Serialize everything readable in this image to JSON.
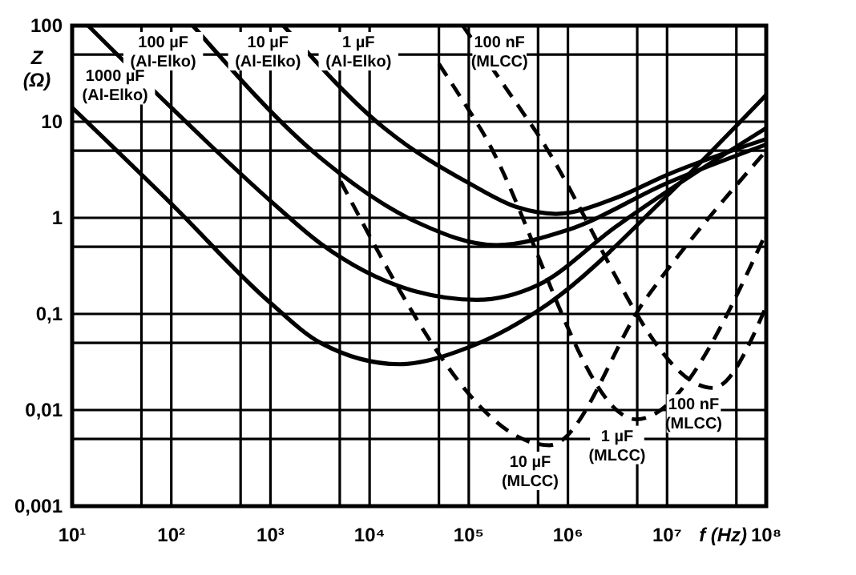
{
  "chart_data": {
    "type": "line",
    "xlabel": "f (Hz)",
    "ylabel": "Z (Ω)",
    "log": "xy",
    "grid": true,
    "marker": "none",
    "xlim": [
      10,
      100000000
    ],
    "ylim": [
      0.001,
      100
    ],
    "xticks": [
      {
        "value": 10,
        "label": "10¹"
      },
      {
        "value": 50,
        "label": null
      },
      {
        "value": 100,
        "label": "10²"
      },
      {
        "value": 500,
        "label": null
      },
      {
        "value": 1000,
        "label": "10³"
      },
      {
        "value": 5000,
        "label": null
      },
      {
        "value": 10000,
        "label": "10⁴"
      },
      {
        "value": 50000,
        "label": null
      },
      {
        "value": 100000,
        "label": "10⁵"
      },
      {
        "value": 500000,
        "label": null
      },
      {
        "value": 1000000,
        "label": "10⁶"
      },
      {
        "value": 5000000,
        "label": null
      },
      {
        "value": 10000000,
        "label": "10⁷"
      },
      {
        "value": 50000000,
        "label": null
      },
      {
        "value": 100000000,
        "label": "10⁸"
      }
    ],
    "yticks": [
      {
        "value": 0.001,
        "label": "0,001"
      },
      {
        "value": 0.005,
        "label": null
      },
      {
        "value": 0.01,
        "label": "0,01"
      },
      {
        "value": 0.05,
        "label": null
      },
      {
        "value": 0.1,
        "label": "0,1"
      },
      {
        "value": 0.5,
        "label": null
      },
      {
        "value": 1,
        "label": "1"
      },
      {
        "value": 5,
        "label": null
      },
      {
        "value": 10,
        "label": "10"
      },
      {
        "value": 50,
        "label": null
      },
      {
        "value": 100,
        "label": "100"
      }
    ],
    "series": [
      {
        "name": "1000 µF\n(Al-Elko)",
        "color": "#000000",
        "line_style": "solid",
        "x": [
          10,
          100,
          1000,
          3200,
          20000,
          100000,
          650000,
          10000000,
          100000000
        ],
        "values": [
          14,
          1.4,
          0.13,
          0.05,
          0.03,
          0.045,
          0.13,
          1.7,
          19
        ]
      },
      {
        "name": "100 µF\n(Al-Elko)",
        "color": "#000000",
        "line_style": "solid",
        "x": [
          14.5,
          100,
          1000,
          3200,
          30000,
          120000,
          500000,
          3000000,
          100000000
        ],
        "values": [
          100,
          14,
          1.5,
          0.54,
          0.17,
          0.14,
          0.2,
          0.8,
          8.6
        ]
      },
      {
        "name": "10 µF\n(Al-Elko)",
        "color": "#000000",
        "line_style": "solid",
        "x": [
          165,
          3200,
          30000,
          190000,
          1000000,
          10000000,
          100000000
        ],
        "values": [
          100,
          4.2,
          0.9,
          0.52,
          0.75,
          2.3,
          5.8
        ]
      },
      {
        "name": "1 µF\n(Al-Elko)",
        "color": "#000000",
        "line_style": "solid",
        "x": [
          1350,
          14000,
          100000,
          300000,
          760000,
          3000000,
          10000000,
          100000000
        ],
        "values": [
          100,
          8.6,
          2.3,
          1.3,
          1.1,
          1.6,
          2.8,
          6.6
        ]
      },
      {
        "name": "10 µF\n(MLCC)",
        "color": "#000000",
        "line_style": "dashed",
        "x": [
          5100,
          650000,
          6000000,
          100000000
        ],
        "values": [
          2.4,
          0.0043,
          0.14,
          5
        ]
      },
      {
        "name": "1 µF\n(MLCC)",
        "color": "#000000",
        "line_style": "dashed",
        "x": [
          50000,
          130000,
          4900000,
          100000000
        ],
        "values": [
          40,
          8.6,
          0.008,
          0.7
        ]
      },
      {
        "name": "100 nF\n(MLCC)",
        "color": "#000000",
        "line_style": "dashed",
        "x": [
          87000,
          450000,
          29000000,
          100000000
        ],
        "values": [
          100,
          8.6,
          0.017,
          0.12
        ]
      }
    ]
  }
}
